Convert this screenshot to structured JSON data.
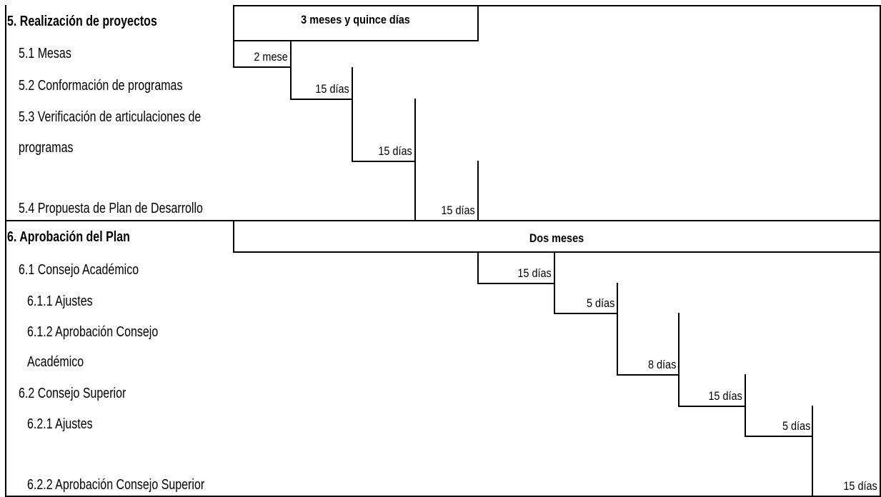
{
  "sections": [
    {
      "title": "5. Realización de proyectos",
      "phase": "3 meses y quince días",
      "tasks": [
        {
          "label": "5.1 Mesas",
          "duration": "2 mese"
        },
        {
          "label": "5.2 Conformación de programas",
          "duration": "15 días"
        },
        {
          "label_line1": "5.3 Verificación de articulaciones de",
          "label_line2": "programas",
          "duration": "15 días"
        },
        {
          "label": "5.4 Propuesta de Plan de Desarrollo",
          "duration": "15 días"
        }
      ]
    },
    {
      "title": "6. Aprobación del Plan",
      "phase": "Dos meses",
      "tasks": [
        {
          "label": "6.1 Consejo Académico",
          "duration": "15 días"
        },
        {
          "label": "6.1.1 Ajustes",
          "duration": "5 días"
        },
        {
          "label_line1": "6.1.2 Aprobación Consejo",
          "label_line2": "Académico",
          "duration": "8 días"
        },
        {
          "label": "6.2 Consejo Superior",
          "duration": "15 días"
        },
        {
          "label": "6.2.1 Ajustes",
          "duration": "5 días"
        },
        {
          "label": "6.2.2 Aprobación Consejo Superior",
          "duration": "15 días"
        }
      ]
    }
  ]
}
